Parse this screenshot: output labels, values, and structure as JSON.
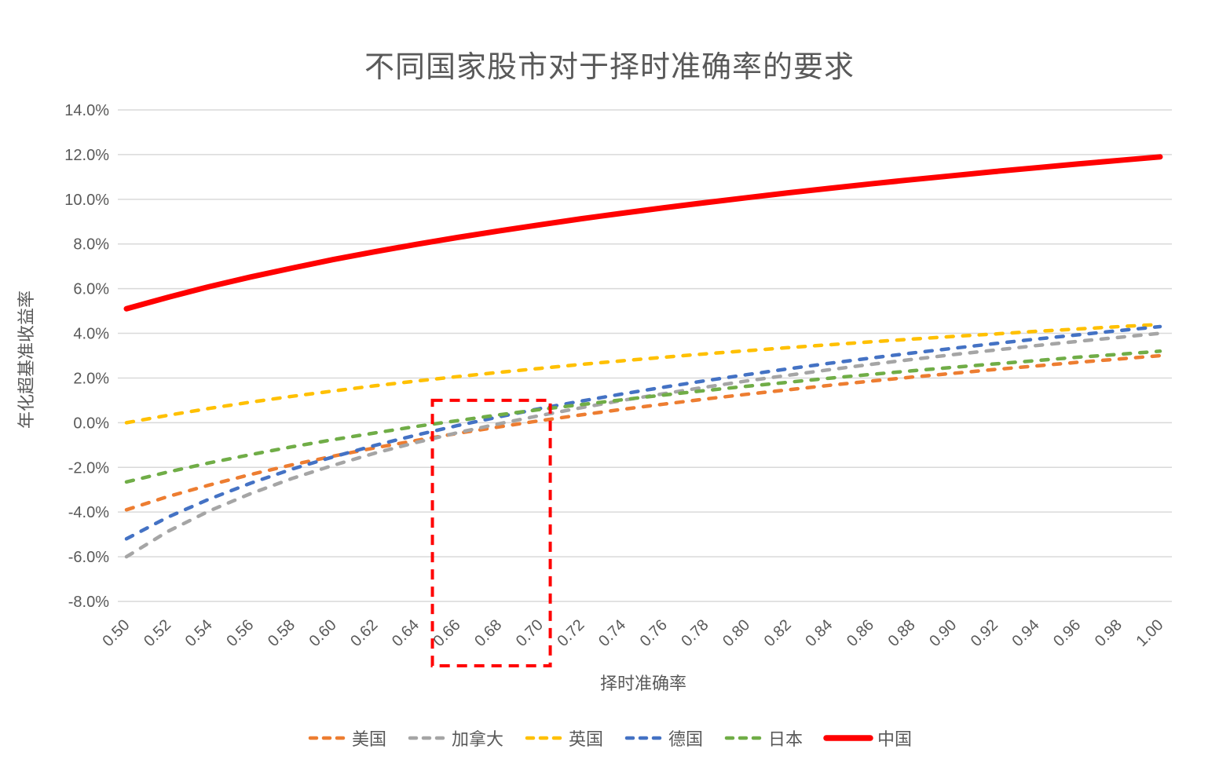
{
  "chart_data": {
    "type": "line",
    "title": "不同国家股市对于择时准确率的要求",
    "xlabel": "择时准确率",
    "ylabel": "年化超基准收益率",
    "x": [
      0.5,
      0.52,
      0.54,
      0.56,
      0.58,
      0.6,
      0.62,
      0.64,
      0.66,
      0.68,
      0.7,
      0.72,
      0.74,
      0.76,
      0.78,
      0.8,
      0.82,
      0.84,
      0.86,
      0.88,
      0.9,
      0.92,
      0.94,
      0.96,
      0.98,
      1.0
    ],
    "x_tick_labels": [
      "0.50",
      "0.52",
      "0.54",
      "0.56",
      "0.58",
      "0.60",
      "0.62",
      "0.64",
      "0.66",
      "0.68",
      "0.70",
      "0.72",
      "0.74",
      "0.76",
      "0.78",
      "0.80",
      "0.82",
      "0.84",
      "0.86",
      "0.88",
      "0.90",
      "0.92",
      "0.94",
      "0.96",
      "0.98",
      "1.00"
    ],
    "ylim": [
      -8,
      14
    ],
    "y_tick_step": 2,
    "y_tick_labels": [
      "-8.0%",
      "-6.0%",
      "-4.0%",
      "-2.0%",
      "0.0%",
      "2.0%",
      "4.0%",
      "6.0%",
      "8.0%",
      "10.0%",
      "12.0%",
      "14.0%"
    ],
    "grid": "horizontal",
    "gridline_color": "#d9d9d9",
    "text_color": "#595959",
    "legend_position": "bottom",
    "units": "percent (annualized excess return over benchmark)",
    "series": [
      {
        "id": "us",
        "name": "美国",
        "color": "#ED7D31",
        "dash": "dashed",
        "values": [
          -3.9,
          -3.31,
          -2.79,
          -2.32,
          -1.89,
          -1.5,
          -1.13,
          -0.8,
          -0.48,
          -0.19,
          0.09,
          0.35,
          0.6,
          0.83,
          1.06,
          1.27,
          1.47,
          1.67,
          1.86,
          2.04,
          2.21,
          2.38,
          2.54,
          2.7,
          2.85,
          3.0
        ]
      },
      {
        "id": "canada",
        "name": "加拿大",
        "color": "#A5A5A5",
        "dash": "dashed",
        "values": [
          -6.0,
          -4.87,
          -3.95,
          -3.18,
          -2.5,
          -1.91,
          -1.37,
          -0.89,
          -0.45,
          -0.05,
          0.32,
          0.67,
          1.0,
          1.3,
          1.59,
          1.87,
          2.12,
          2.37,
          2.61,
          2.83,
          3.05,
          3.25,
          3.45,
          3.64,
          3.82,
          4.0
        ]
      },
      {
        "id": "uk",
        "name": "英国",
        "color": "#FFC000",
        "dash": "dashed",
        "values": [
          0.0,
          0.33,
          0.64,
          0.92,
          1.18,
          1.42,
          1.65,
          1.86,
          2.06,
          2.25,
          2.43,
          2.61,
          2.77,
          2.93,
          3.08,
          3.22,
          3.36,
          3.49,
          3.62,
          3.74,
          3.86,
          3.97,
          4.09,
          4.19,
          4.3,
          4.4
        ]
      },
      {
        "id": "germany",
        "name": "德国",
        "color": "#4472C4",
        "dash": "dashed",
        "values": [
          -5.2,
          -4.23,
          -3.42,
          -2.71,
          -2.08,
          -1.53,
          -1.02,
          -0.56,
          -0.13,
          0.26,
          0.63,
          0.97,
          1.29,
          1.59,
          1.88,
          2.15,
          2.41,
          2.66,
          2.89,
          3.12,
          3.33,
          3.54,
          3.74,
          3.93,
          4.12,
          4.3
        ]
      },
      {
        "id": "japan",
        "name": "日本",
        "color": "#70AD47",
        "dash": "dashed",
        "values": [
          -2.65,
          -2.21,
          -1.8,
          -1.43,
          -1.08,
          -0.76,
          -0.46,
          -0.17,
          0.09,
          0.35,
          0.59,
          0.81,
          1.03,
          1.24,
          1.44,
          1.63,
          1.81,
          1.99,
          2.16,
          2.32,
          2.48,
          2.63,
          2.78,
          2.93,
          3.06,
          3.2
        ]
      },
      {
        "id": "china",
        "name": "中国",
        "color": "#FF0000",
        "dash": "solid",
        "values": [
          5.1,
          5.61,
          6.09,
          6.52,
          6.92,
          7.3,
          7.65,
          7.98,
          8.29,
          8.58,
          8.86,
          9.13,
          9.38,
          9.62,
          9.85,
          10.07,
          10.29,
          10.49,
          10.69,
          10.88,
          11.06,
          11.24,
          11.41,
          11.58,
          11.74,
          11.9
        ]
      }
    ],
    "highlight_box": {
      "description": "red dashed rectangle highlighting accuracy range 0.66-0.70",
      "x_start": 0.648,
      "x_end": 0.705,
      "y_top": 1.0,
      "color": "#FF0000",
      "dash": "dashed"
    }
  }
}
